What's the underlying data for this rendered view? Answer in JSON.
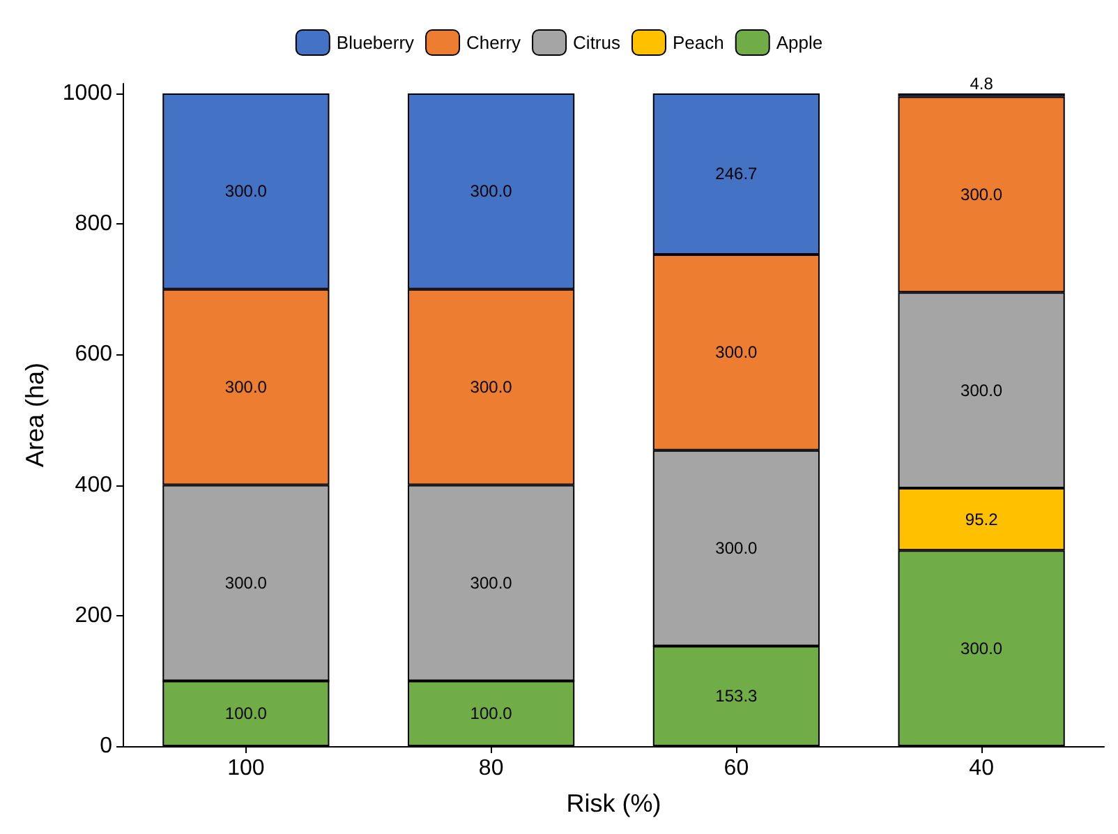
{
  "chart_data": {
    "type": "bar",
    "stacked": true,
    "xlabel": "Risk (%)",
    "ylabel": "Area (ha)",
    "categories": [
      "100",
      "80",
      "60",
      "40"
    ],
    "series": [
      {
        "name": "Apple",
        "color": "#70ad47",
        "values": [
          100,
          100,
          153.3,
          300
        ],
        "value_labels": [
          "100.0",
          "100.0",
          "153.3",
          "300.0"
        ]
      },
      {
        "name": "Peach",
        "color": "#ffc000",
        "values": [
          0,
          0,
          0,
          95.2
        ],
        "value_labels": [
          null,
          null,
          null,
          "95.2"
        ]
      },
      {
        "name": "Citrus",
        "color": "#a5a5a5",
        "values": [
          300,
          300,
          300,
          300
        ],
        "value_labels": [
          "300.0",
          "300.0",
          "300.0",
          "300.0"
        ]
      },
      {
        "name": "Cherry",
        "color": "#ed7d31",
        "values": [
          300,
          300,
          300,
          300
        ],
        "value_labels": [
          "300.0",
          "300.0",
          "300.0",
          "300.0"
        ]
      },
      {
        "name": "Blueberry",
        "color": "#4472c4",
        "values": [
          300,
          300,
          246.7,
          4.8
        ],
        "value_labels": [
          "300.0",
          "300.0",
          "246.7",
          "4.8"
        ]
      }
    ],
    "ylim": [
      0,
      1015
    ],
    "yticks": [
      0,
      200,
      400,
      600,
      800,
      1000
    ],
    "grid": false,
    "legend": "top"
  }
}
